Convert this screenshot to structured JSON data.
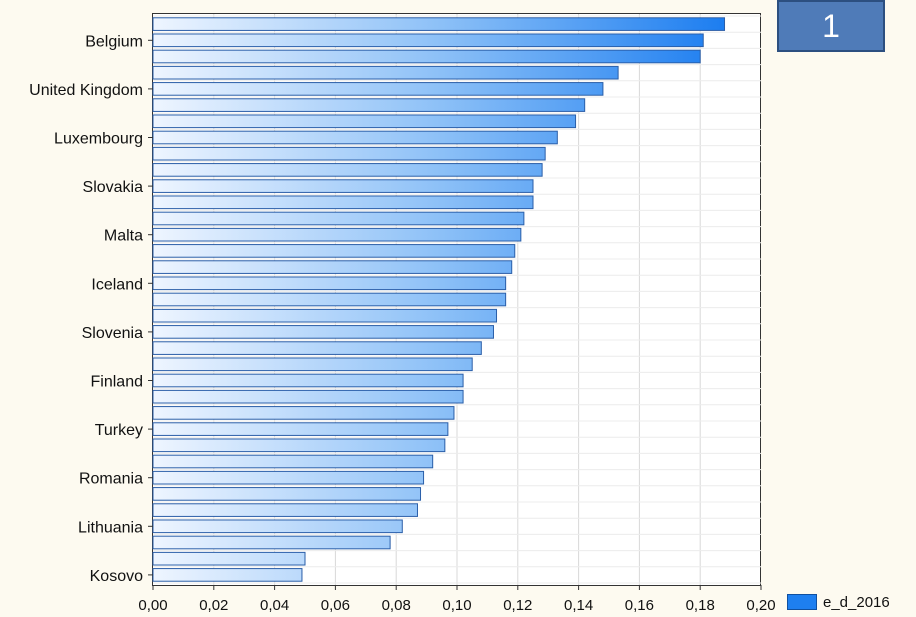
{
  "badge": {
    "label": "1"
  },
  "legend": {
    "label": "e_d_2016"
  },
  "chart_data": {
    "type": "bar",
    "orientation": "horizontal",
    "series": [
      {
        "name": "e_d_2016"
      }
    ],
    "values": [
      0.188,
      0.181,
      0.18,
      0.153,
      0.148,
      0.142,
      0.139,
      0.133,
      0.129,
      0.128,
      0.125,
      0.125,
      0.122,
      0.121,
      0.119,
      0.118,
      0.116,
      0.116,
      0.113,
      0.112,
      0.108,
      0.105,
      0.102,
      0.102,
      0.099,
      0.097,
      0.096,
      0.092,
      0.089,
      0.088,
      0.087,
      0.082,
      0.078,
      0.05,
      0.049
    ],
    "category_labels": [
      {
        "index": 1,
        "label": "Belgium"
      },
      {
        "index": 4,
        "label": "United Kingdom"
      },
      {
        "index": 7,
        "label": "Luxembourg"
      },
      {
        "index": 10,
        "label": "Slovakia"
      },
      {
        "index": 13,
        "label": "Malta"
      },
      {
        "index": 16,
        "label": "Iceland"
      },
      {
        "index": 19,
        "label": "Slovenia"
      },
      {
        "index": 22,
        "label": "Finland"
      },
      {
        "index": 25,
        "label": "Turkey"
      },
      {
        "index": 28,
        "label": "Romania"
      },
      {
        "index": 31,
        "label": "Lithuania"
      },
      {
        "index": 34,
        "label": "Kosovo"
      }
    ],
    "xlim": [
      0,
      0.2
    ],
    "xticks": [
      "0,00",
      "0,02",
      "0,04",
      "0,06",
      "0,08",
      "0,10",
      "0,12",
      "0,14",
      "0,16",
      "0,18",
      "0,20"
    ],
    "grid": true,
    "legend_position": "bottom-right"
  }
}
